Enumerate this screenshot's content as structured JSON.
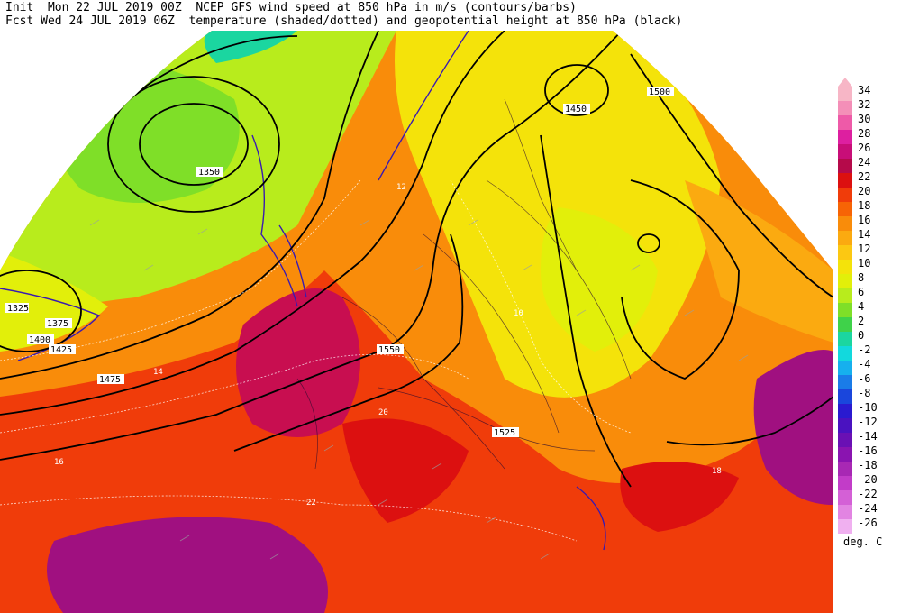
{
  "header": {
    "line1": "Init  Mon 22 JUL 2019 00Z  NCEP GFS wind speed at 850 hPa in m/s (contours/barbs)",
    "line2": "Fcst Wed 24 JUL 2019 06Z  temperature (shaded/dotted) and geopotential height at 850 hPa (black)"
  },
  "legend": {
    "units": "deg. C",
    "entries": [
      {
        "label": "34",
        "color": "#f7b6c6"
      },
      {
        "label": "32",
        "color": "#f48fb8"
      },
      {
        "label": "30",
        "color": "#ee5aa8"
      },
      {
        "label": "28",
        "color": "#dd1fa0"
      },
      {
        "label": "26",
        "color": "#c80e78"
      },
      {
        "label": "24",
        "color": "#b50a4a"
      },
      {
        "label": "22",
        "color": "#dc1010"
      },
      {
        "label": "20",
        "color": "#f03c0a"
      },
      {
        "label": "18",
        "color": "#f76405"
      },
      {
        "label": "16",
        "color": "#f98c0a"
      },
      {
        "label": "14",
        "color": "#fbaa10"
      },
      {
        "label": "12",
        "color": "#fcc812"
      },
      {
        "label": "10",
        "color": "#f4e30a"
      },
      {
        "label": "8",
        "color": "#e2ef0a"
      },
      {
        "label": "6",
        "color": "#b8ec1c"
      },
      {
        "label": "4",
        "color": "#7fdf28"
      },
      {
        "label": "2",
        "color": "#3fd24a"
      },
      {
        "label": "0",
        "color": "#1bd6a0"
      },
      {
        "label": "-2",
        "color": "#12d9dd"
      },
      {
        "label": "-4",
        "color": "#16b0ee"
      },
      {
        "label": "-6",
        "color": "#1a7ce8"
      },
      {
        "label": "-8",
        "color": "#1a46dc"
      },
      {
        "label": "-10",
        "color": "#2a1ad0"
      },
      {
        "label": "-12",
        "color": "#4a12c0"
      },
      {
        "label": "-14",
        "color": "#6a10b4"
      },
      {
        "label": "-16",
        "color": "#8a14b0"
      },
      {
        "label": "-18",
        "color": "#a828b4"
      },
      {
        "label": "-20",
        "color": "#c23cc8"
      },
      {
        "label": "-22",
        "color": "#d460d6"
      },
      {
        "label": "-24",
        "color": "#e284e2"
      },
      {
        "label": "-26",
        "color": "#f0b0f0"
      }
    ]
  },
  "height_labels": [
    "1325",
    "1350",
    "1375",
    "1400",
    "1425",
    "1450",
    "1475",
    "1500",
    "1525",
    "1550"
  ],
  "temp_labels": [
    "16",
    "14",
    "12",
    "10",
    "20",
    "22",
    "18"
  ],
  "colors": {
    "cold": "#8ad62a",
    "cool": "#f0e40a",
    "warm": "#fbaa10",
    "hot": "#f03c0a",
    "hotter": "#c80e50",
    "hottest": "#a01080",
    "contour": "#000000",
    "coast": "#3a1ab0"
  }
}
